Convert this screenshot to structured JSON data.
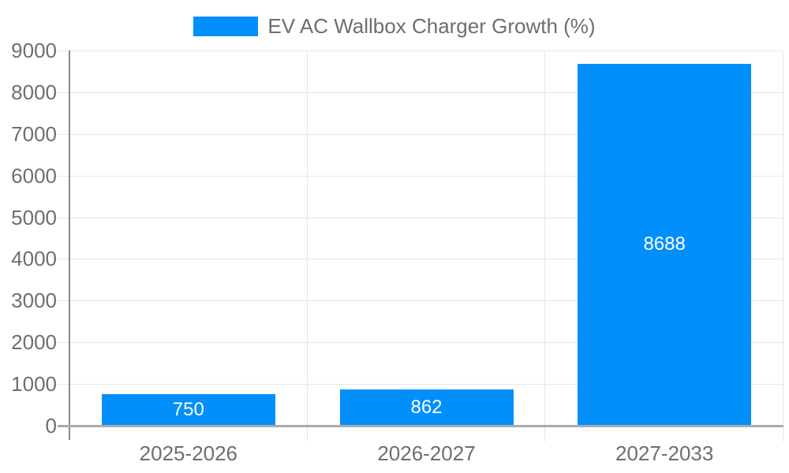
{
  "legend": {
    "label": "EV AC Wallbox Charger Growth (%)"
  },
  "chart_data": {
    "type": "bar",
    "title": "EV AC Wallbox Charger Growth (%)",
    "categories": [
      "2025-2026",
      "2026-2027",
      "2027-2033"
    ],
    "values": [
      750,
      862,
      8688
    ],
    "value_labels": [
      "750",
      "862",
      "8688"
    ],
    "xlabel": "",
    "ylabel": "",
    "ylim": [
      0,
      9000
    ],
    "ytick_step": 1000,
    "ytick_labels": [
      "9000",
      "8000",
      "7000",
      "6000",
      "5000",
      "4000",
      "3000",
      "2000",
      "1000",
      "0"
    ],
    "grid": true,
    "legend_position": "top"
  },
  "colors": {
    "bar": "#008FFB",
    "legend_swatch": "#008FFB",
    "gridline": "#e6e6e6",
    "axis_line": "#8a8a8a",
    "baseline": "#ababab",
    "tick_label": "#6e6e6e",
    "legend_text": "#6e6e6e",
    "bar_value_text": "#ffffff",
    "background": "#ffffff"
  }
}
